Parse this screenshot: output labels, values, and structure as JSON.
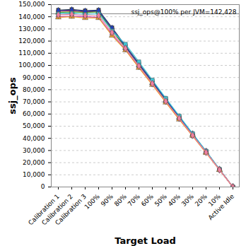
{
  "chart_data": {
    "type": "line",
    "x_label": "Target Load",
    "y_label": "ssj_ops",
    "categories": [
      "Calibration 1",
      "Calibration 2",
      "Calibration 3",
      "100%",
      "90%",
      "80%",
      "70%",
      "60%",
      "50%",
      "40%",
      "30%",
      "20%",
      "10%",
      "Active Idle"
    ],
    "series": [
      {
        "color": "#333333",
        "marker": "square",
        "values": [
          145500,
          146000,
          145000,
          145500,
          131000,
          116000,
          101500,
          87000,
          72500,
          58000,
          43500,
          29500,
          14500,
          0
        ]
      },
      {
        "color": "#d62728",
        "marker": "circle",
        "values": [
          144500,
          145000,
          144000,
          144500,
          130000,
          115000,
          100500,
          86000,
          71500,
          57500,
          43000,
          29000,
          14300,
          0
        ]
      },
      {
        "color": "#2ca02c",
        "marker": "triangle",
        "values": [
          143500,
          144000,
          143500,
          144000,
          129000,
          114500,
          100000,
          85500,
          71000,
          57000,
          43000,
          28800,
          14200,
          0
        ]
      },
      {
        "color": "#1f3fbf",
        "marker": "diamond",
        "values": [
          145000,
          145500,
          144500,
          145000,
          130500,
          115500,
          101000,
          86500,
          72000,
          57500,
          43500,
          29200,
          14400,
          0
        ]
      },
      {
        "color": "#40c8d8",
        "marker": "square",
        "values": [
          142500,
          143000,
          142000,
          142500,
          128500,
          117500,
          103000,
          88000,
          73000,
          58500,
          44000,
          29500,
          14600,
          0
        ]
      },
      {
        "color": "#c040c0",
        "marker": "circle",
        "values": [
          140000,
          140500,
          140000,
          139500,
          125500,
          113000,
          98500,
          84500,
          70000,
          56000,
          42000,
          28300,
          14000,
          0
        ]
      },
      {
        "color": "#f0a030",
        "marker": "triangle",
        "values": [
          139500,
          140000,
          139000,
          139000,
          124500,
          112500,
          98000,
          84000,
          69500,
          55500,
          42000,
          28000,
          14000,
          0
        ]
      },
      {
        "color": "#f080a0",
        "marker": "diamond",
        "values": [
          141500,
          142000,
          141000,
          141000,
          127000,
          114000,
          99500,
          85000,
          70500,
          56500,
          42500,
          28500,
          14100,
          0
        ]
      }
    ],
    "ylim": [
      0,
      150000
    ],
    "yticks": [
      0,
      {
        "value": 10000,
        "label": "10,000"
      },
      {
        "value": 20000,
        "label": "20,000"
      },
      {
        "value": 30000,
        "label": "30,000"
      },
      {
        "value": 40000,
        "label": "40,000"
      },
      {
        "value": 50000,
        "label": "50,000"
      },
      {
        "value": 60000,
        "label": "60,000"
      },
      {
        "value": 70000,
        "label": "70,000"
      },
      {
        "value": 80000,
        "label": "80,000"
      },
      {
        "value": 90000,
        "label": "90,000"
      },
      {
        "value": 100000,
        "label": "100,000"
      },
      {
        "value": 110000,
        "label": "110,000"
      },
      {
        "value": 120000,
        "label": "120,000"
      },
      {
        "value": 130000,
        "label": "130,000"
      },
      {
        "value": 140000,
        "label": "140,000"
      },
      {
        "value": 150000,
        "label": "150,000"
      }
    ],
    "grid": true,
    "reference_line": {
      "value": 142428,
      "label": "ssj_ops@100% per JVM=142,428"
    }
  }
}
